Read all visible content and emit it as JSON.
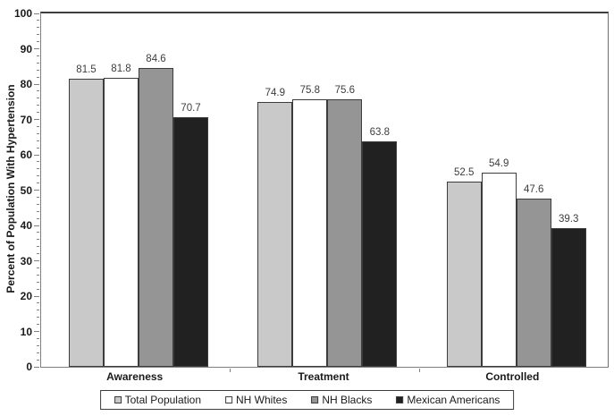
{
  "chart_data": {
    "type": "bar",
    "title": "",
    "ylabel": "Percent of Population With Hypertension",
    "xlabel": "",
    "ylim": [
      0,
      100
    ],
    "yticks": [
      0,
      10,
      20,
      30,
      40,
      50,
      60,
      70,
      80,
      90,
      100
    ],
    "ytick_minor_step": 2,
    "grid": false,
    "legend_position": "bottom",
    "categories": [
      "Awareness",
      "Treatment",
      "Controlled"
    ],
    "series": [
      {
        "name": "Total Population",
        "color": "#c9c9c9",
        "values": [
          81.5,
          74.9,
          52.5
        ]
      },
      {
        "name": "NH Whites",
        "color": "#ffffff",
        "values": [
          81.8,
          75.8,
          54.9
        ]
      },
      {
        "name": "NH Blacks",
        "color": "#959595",
        "values": [
          84.6,
          75.6,
          47.6
        ]
      },
      {
        "name": "Mexican Americans",
        "color": "#212121",
        "values": [
          70.7,
          63.8,
          39.3
        ]
      }
    ]
  },
  "colors": {
    "axis": "#808080",
    "bar_border": "#3c3c3c",
    "text": "#1a1a1a",
    "value_label": "#3d3d3d",
    "background": "#ffffff"
  }
}
